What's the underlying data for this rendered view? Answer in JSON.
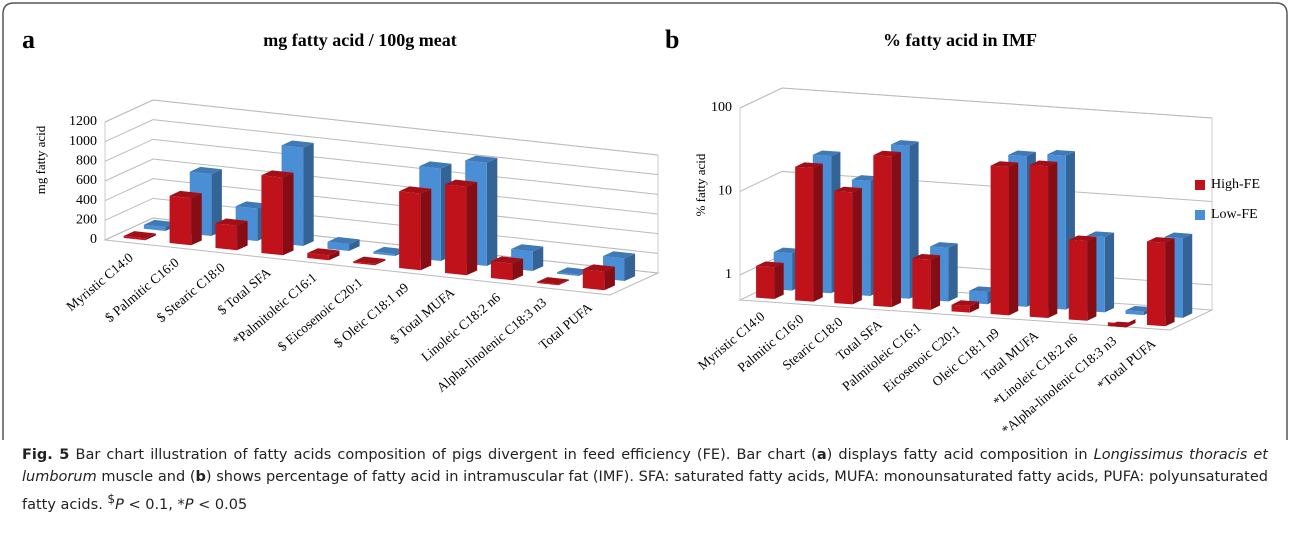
{
  "chart_data": [
    {
      "type": "bar",
      "label": "a",
      "title": "mg fatty acid / 100g meat",
      "y_label": "mg fatty acid",
      "categories": [
        "Myristic C14:0",
        "$ Palmitic C16:0",
        "$ Stearic C18:0",
        "$ Total SFA",
        "*Palmitoleic C16:1",
        "$ Eicosenoic C20:1",
        "$ Oleic C18:1 n9",
        "$ Total MUFA",
        "Linoleic C18:2 n6",
        "Alpha-linolenic C18:3 n3",
        "Total PUFA"
      ],
      "series": [
        {
          "name": "High-FE",
          "color": "#c0121b",
          "values": [
            20,
            480,
            250,
            790,
            50,
            15,
            780,
            900,
            170,
            10,
            190
          ]
        },
        {
          "name": "Low-FE",
          "color": "#4a8fd6",
          "values": [
            40,
            630,
            330,
            1000,
            70,
            20,
            940,
            1050,
            200,
            15,
            230
          ]
        }
      ],
      "ylim": [
        0,
        1200
      ],
      "yticks": [
        0,
        200,
        400,
        600,
        800,
        1000,
        1200
      ],
      "log": false,
      "grid": true,
      "legend": false
    },
    {
      "type": "bar",
      "label": "b",
      "title": "% fatty acid in IMF",
      "y_label": "% fatty acid",
      "categories": [
        "Myristic C14:0",
        "Palmitic C16:0",
        "Stearic C18:0",
        "Total SFA",
        "Palmitoleic C16:1",
        "Eicosenoic C20:1",
        "Oleic C18:1 n9",
        "Total MUFA",
        "*Linoleic C18:2 n6",
        "*Alpha-linolenic C18:3 n3",
        "*Total PUFA"
      ],
      "series": [
        {
          "name": "High-FE",
          "color": "#c0121b",
          "values": [
            1.2,
            20,
            11,
            32,
            2.0,
            0.6,
            30,
            33,
            4.5,
            0.45,
            5
          ]
        },
        {
          "name": "Low-FE",
          "color": "#4a8fd6",
          "values": [
            1.4,
            22,
            12,
            34,
            2.2,
            0.7,
            32,
            35,
            4.0,
            0.55,
            4.5
          ]
        }
      ],
      "ylim": [
        0.5,
        100
      ],
      "yticks": [
        1,
        10,
        100
      ],
      "log": true,
      "grid": true,
      "legend": "right"
    }
  ],
  "caption": {
    "label": "Fig. 5",
    "parts": [
      " Bar chart illustration of fatty acids composition of pigs divergent in feed efficiency (FE). Bar chart (",
      "a",
      ") displays fatty acid composition in ",
      "Longissimus thoracis et lumborum",
      " muscle and (",
      "b",
      ") shows percentage of fatty acid in intramuscular fat (IMF). SFA: saturated fatty acids, MUFA: monounsaturated fatty acids, PUFA: polyunsaturated fatty acids. ",
      "$",
      "P",
      " < 0.1, *",
      "P",
      " < 0.05"
    ]
  }
}
